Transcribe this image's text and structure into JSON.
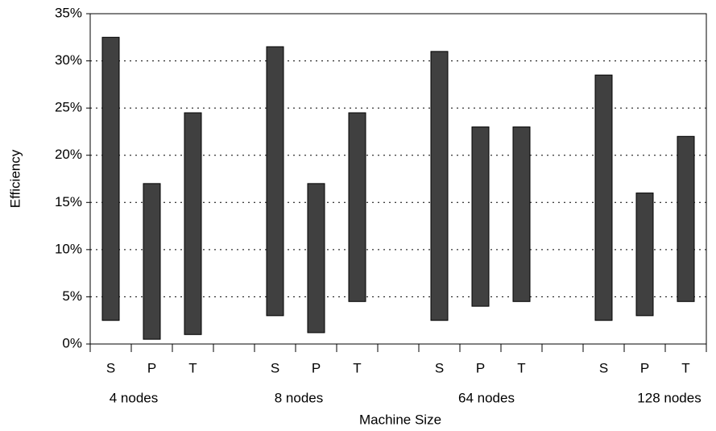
{
  "chart_data": {
    "type": "floating_bar",
    "y_label": "Efficiency",
    "x_label": "Machine Size",
    "categories": [
      "S",
      "P",
      "T",
      null,
      "S",
      "P",
      "T",
      null,
      "S",
      "P",
      "T",
      null,
      "S",
      "P",
      "T"
    ],
    "groups": [
      "4 nodes",
      "8 nodes",
      "64 nodes",
      "128 nodes"
    ],
    "low": [
      2.5,
      0.5,
      1,
      null,
      3,
      1.2,
      4.5,
      null,
      2.5,
      4,
      4.5,
      null,
      2.5,
      3,
      4.5
    ],
    "high": [
      32.5,
      17,
      24.5,
      null,
      31.5,
      17,
      24.5,
      null,
      31,
      23,
      23,
      null,
      28.5,
      16,
      22
    ],
    "color": "#404040",
    "ylim": [
      0,
      35
    ],
    "yticks": [
      {
        "value": 0,
        "label": "0%"
      },
      {
        "value": 5,
        "label": "5%"
      },
      {
        "value": 10,
        "label": "10%"
      },
      {
        "value": 15,
        "label": "15%"
      },
      {
        "value": 20,
        "label": "20%"
      },
      {
        "value": 25,
        "label": "25%"
      },
      {
        "value": 30,
        "label": "30%"
      },
      {
        "value": 35,
        "label": "35%"
      }
    ],
    "grid": true
  }
}
